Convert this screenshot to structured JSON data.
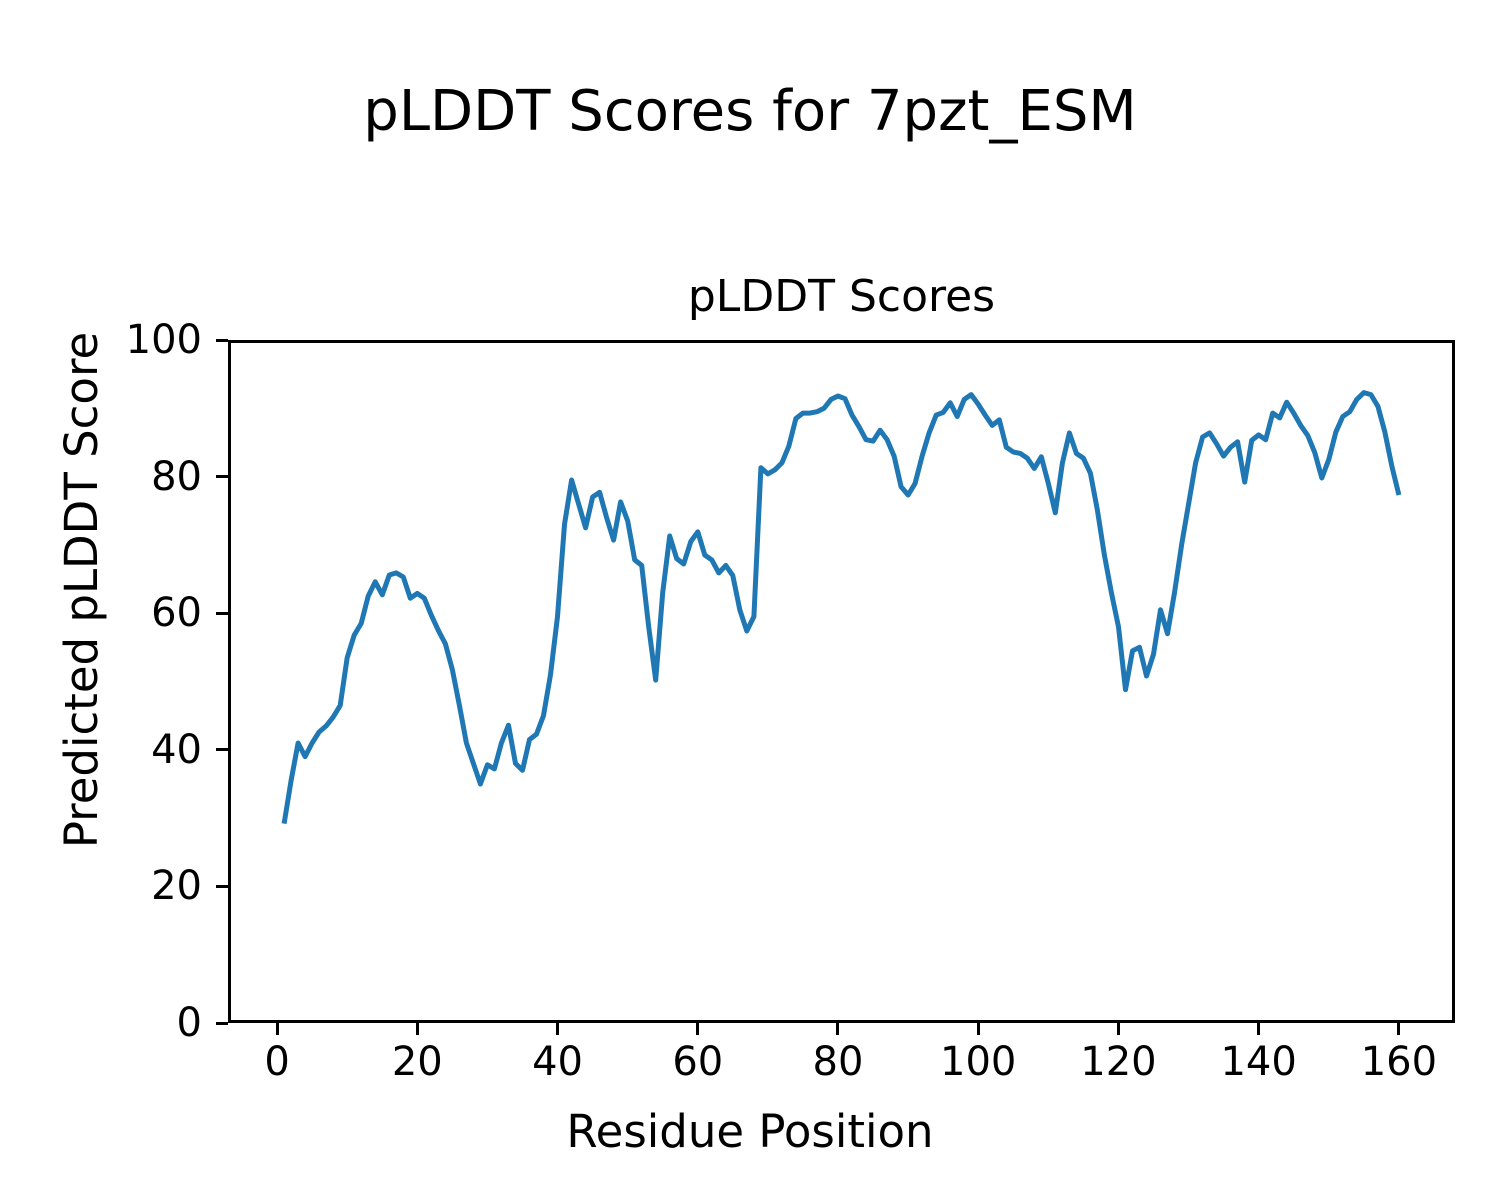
{
  "figure": {
    "suptitle": "pLDDT Scores for 7pzt_ESM"
  },
  "chart_data": {
    "type": "line",
    "title": "pLDDT Scores",
    "xlabel": "Residue Position",
    "ylabel": "Predicted pLDDT Score",
    "xlim": [
      -7,
      168
    ],
    "ylim": [
      0,
      100
    ],
    "xticks": [
      0,
      20,
      40,
      60,
      80,
      100,
      120,
      140,
      160
    ],
    "yticks": [
      0,
      20,
      40,
      60,
      80,
      100
    ],
    "grid": false,
    "legend": "none",
    "line_color": "#1f77b4",
    "line_width": 5,
    "x_start": 1,
    "series": [
      {
        "name": "pLDDT",
        "values": [
          29.2,
          35.5,
          41.0,
          39.0,
          41.0,
          42.6,
          43.5,
          44.8,
          46.5,
          53.5,
          56.8,
          58.5,
          62.5,
          64.6,
          62.7,
          65.6,
          65.9,
          65.3,
          62.2,
          62.9,
          62.2,
          59.7,
          57.5,
          55.5,
          51.7,
          46.5,
          41.0,
          38.0,
          35.0,
          37.8,
          37.2,
          41.0,
          43.6,
          38.0,
          37.0,
          41.5,
          42.3,
          45.0,
          51.0,
          59.5,
          73.0,
          79.5,
          76.0,
          72.5,
          77.0,
          77.7,
          74.0,
          70.7,
          76.3,
          73.5,
          67.8,
          67.0,
          58.0,
          50.2,
          63.0,
          71.3,
          68.0,
          67.2,
          70.5,
          71.9,
          68.5,
          67.8,
          65.9,
          67.0,
          65.5,
          60.5,
          57.4,
          59.5,
          81.3,
          80.4,
          81.0,
          82.0,
          84.5,
          88.5,
          89.3,
          89.3,
          89.5,
          90.0,
          91.3,
          91.8,
          91.4,
          89.0,
          87.3,
          85.4,
          85.2,
          86.8,
          85.4,
          83.0,
          78.5,
          77.3,
          79.0,
          83.0,
          86.4,
          89.0,
          89.4,
          90.8,
          88.8,
          91.3,
          92.0,
          90.6,
          89.0,
          87.5,
          88.3,
          84.3,
          83.6,
          83.4,
          82.7,
          81.2,
          82.9,
          79.0,
          74.7,
          82.0,
          86.4,
          83.4,
          82.7,
          80.5,
          75.1,
          68.5,
          63.0,
          58.0,
          48.8,
          54.5,
          55.0,
          50.8,
          54.0,
          60.5,
          57.0,
          63.0,
          70.0,
          76.0,
          82.0,
          85.8,
          86.4,
          84.8,
          83.0,
          84.3,
          85.1,
          79.2,
          85.3,
          86.1,
          85.4,
          89.3,
          88.6,
          90.9,
          89.3,
          87.5,
          86.0,
          83.5,
          79.8,
          82.5,
          86.5,
          88.8,
          89.5,
          91.3,
          92.3,
          92.0,
          90.3,
          86.5,
          81.5,
          77.3
        ]
      }
    ]
  }
}
